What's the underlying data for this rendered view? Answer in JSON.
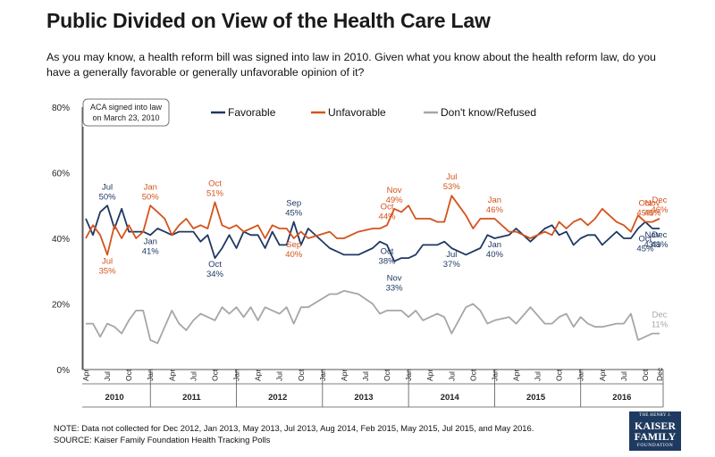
{
  "title": "Public Divided on View of the Health Care Law",
  "subtitle": "As you may know, a health reform bill was signed into law in 2010. Given what you know about the health reform law, do you have a generally favorable or generally unfavorable opinion of it?",
  "notes": {
    "note": "NOTE: Data not collected for Dec 2012, Jan 2013, May 2013, Jul 2013, Aug 2014, Feb 2015, May 2015, Jul 2015, and May 2016.",
    "source": "SOURCE: Kaiser Family Foundation Health Tracking Polls"
  },
  "logo": {
    "line1": "THE HENRY J.",
    "line2": "KAISER",
    "line3": "FAMILY",
    "line4": "FOUNDATION"
  },
  "colors": {
    "favorable": "#1f3864",
    "unfavorable": "#d4531b",
    "dontknow": "#a6a6a6",
    "axis": "#555555"
  },
  "chart_data": {
    "type": "line",
    "ylim": [
      0,
      80
    ],
    "yticks": [
      0,
      20,
      40,
      60,
      80
    ],
    "ytick_format": "percent",
    "grid": false,
    "legend_placement": "top",
    "x_month_range": [
      "2010-04",
      "2016-12"
    ],
    "month_tick_labels": [
      "Apr",
      "Jul",
      "Oct",
      "Jan"
    ],
    "year_labels": [
      "2010",
      "2011",
      "2012",
      "2013",
      "2014",
      "2015",
      "2016"
    ],
    "annotation_box": {
      "line1": "ACA signed into law",
      "line2": "on March 23, 2010"
    },
    "series": [
      {
        "name": "Favorable",
        "key": "favorable",
        "points": [
          [
            "2010-04",
            46
          ],
          [
            "2010-05",
            41
          ],
          [
            "2010-06",
            48
          ],
          [
            "2010-07",
            50
          ],
          [
            "2010-08",
            43
          ],
          [
            "2010-09",
            49
          ],
          [
            "2010-10",
            42
          ],
          [
            "2010-11",
            42
          ],
          [
            "2010-12",
            42
          ],
          [
            "2011-01",
            41
          ],
          [
            "2011-02",
            43
          ],
          [
            "2011-03",
            42
          ],
          [
            "2011-04",
            41
          ],
          [
            "2011-05",
            42
          ],
          [
            "2011-06",
            42
          ],
          [
            "2011-07",
            42
          ],
          [
            "2011-08",
            39
          ],
          [
            "2011-09",
            41
          ],
          [
            "2011-10",
            34
          ],
          [
            "2011-11",
            37
          ],
          [
            "2011-12",
            41
          ],
          [
            "2012-01",
            37
          ],
          [
            "2012-02",
            42
          ],
          [
            "2012-03",
            41
          ],
          [
            "2012-04",
            41
          ],
          [
            "2012-05",
            37
          ],
          [
            "2012-06",
            42
          ],
          [
            "2012-07",
            38
          ],
          [
            "2012-08",
            38
          ],
          [
            "2012-09",
            45
          ],
          [
            "2012-10",
            38
          ],
          [
            "2012-11",
            43
          ],
          [
            "2013-02",
            37
          ],
          [
            "2013-03",
            36
          ],
          [
            "2013-04",
            35
          ],
          [
            "2013-06",
            35
          ],
          [
            "2013-08",
            37
          ],
          [
            "2013-09",
            39
          ],
          [
            "2013-10",
            38
          ],
          [
            "2013-11",
            33
          ],
          [
            "2013-12",
            34
          ],
          [
            "2014-01",
            34
          ],
          [
            "2014-02",
            35
          ],
          [
            "2014-03",
            38
          ],
          [
            "2014-04",
            38
          ],
          [
            "2014-05",
            38
          ],
          [
            "2014-06",
            39
          ],
          [
            "2014-07",
            37
          ],
          [
            "2014-09",
            35
          ],
          [
            "2014-10",
            36
          ],
          [
            "2014-11",
            37
          ],
          [
            "2014-12",
            41
          ],
          [
            "2015-01",
            40
          ],
          [
            "2015-03",
            41
          ],
          [
            "2015-04",
            43
          ],
          [
            "2015-06",
            39
          ],
          [
            "2015-08",
            43
          ],
          [
            "2015-09",
            44
          ],
          [
            "2015-10",
            41
          ],
          [
            "2015-11",
            42
          ],
          [
            "2015-12",
            38
          ],
          [
            "2016-01",
            40
          ],
          [
            "2016-02",
            41
          ],
          [
            "2016-03",
            41
          ],
          [
            "2016-04",
            38
          ],
          [
            "2016-06",
            42
          ],
          [
            "2016-07",
            40
          ],
          [
            "2016-08",
            40
          ],
          [
            "2016-09",
            43
          ],
          [
            "2016-10",
            45
          ],
          [
            "2016-11",
            43
          ],
          [
            "2016-12",
            43
          ]
        ]
      },
      {
        "name": "Unfavorable",
        "key": "unfavorable",
        "points": [
          [
            "2010-04",
            40
          ],
          [
            "2010-05",
            44
          ],
          [
            "2010-06",
            41
          ],
          [
            "2010-07",
            35
          ],
          [
            "2010-08",
            44
          ],
          [
            "2010-09",
            40
          ],
          [
            "2010-10",
            44
          ],
          [
            "2010-11",
            40
          ],
          [
            "2010-12",
            42
          ],
          [
            "2011-01",
            50
          ],
          [
            "2011-02",
            48
          ],
          [
            "2011-03",
            46
          ],
          [
            "2011-04",
            41
          ],
          [
            "2011-05",
            44
          ],
          [
            "2011-06",
            46
          ],
          [
            "2011-07",
            43
          ],
          [
            "2011-08",
            44
          ],
          [
            "2011-09",
            43
          ],
          [
            "2011-10",
            51
          ],
          [
            "2011-11",
            44
          ],
          [
            "2011-12",
            43
          ],
          [
            "2012-01",
            44
          ],
          [
            "2012-02",
            42
          ],
          [
            "2012-03",
            43
          ],
          [
            "2012-04",
            44
          ],
          [
            "2012-05",
            40
          ],
          [
            "2012-06",
            44
          ],
          [
            "2012-07",
            43
          ],
          [
            "2012-08",
            43
          ],
          [
            "2012-09",
            40
          ],
          [
            "2012-10",
            42
          ],
          [
            "2012-11",
            40
          ],
          [
            "2013-02",
            42
          ],
          [
            "2013-03",
            40
          ],
          [
            "2013-04",
            40
          ],
          [
            "2013-06",
            42
          ],
          [
            "2013-08",
            43
          ],
          [
            "2013-09",
            43
          ],
          [
            "2013-10",
            44
          ],
          [
            "2013-11",
            49
          ],
          [
            "2013-12",
            48
          ],
          [
            "2014-01",
            50
          ],
          [
            "2014-02",
            46
          ],
          [
            "2014-03",
            46
          ],
          [
            "2014-04",
            46
          ],
          [
            "2014-05",
            45
          ],
          [
            "2014-06",
            45
          ],
          [
            "2014-07",
            53
          ],
          [
            "2014-09",
            47
          ],
          [
            "2014-10",
            43
          ],
          [
            "2014-11",
            46
          ],
          [
            "2014-12",
            46
          ],
          [
            "2015-01",
            46
          ],
          [
            "2015-03",
            42
          ],
          [
            "2015-04",
            42
          ],
          [
            "2015-06",
            40
          ],
          [
            "2015-08",
            42
          ],
          [
            "2015-09",
            41
          ],
          [
            "2015-10",
            45
          ],
          [
            "2015-11",
            43
          ],
          [
            "2015-12",
            45
          ],
          [
            "2016-01",
            46
          ],
          [
            "2016-02",
            44
          ],
          [
            "2016-03",
            46
          ],
          [
            "2016-04",
            49
          ],
          [
            "2016-06",
            45
          ],
          [
            "2016-07",
            44
          ],
          [
            "2016-08",
            42
          ],
          [
            "2016-09",
            47
          ],
          [
            "2016-10",
            45
          ],
          [
            "2016-11",
            45
          ],
          [
            "2016-12",
            46
          ]
        ]
      },
      {
        "name": "Don't know/Refused",
        "key": "dontknow",
        "points": [
          [
            "2010-04",
            14
          ],
          [
            "2010-05",
            14
          ],
          [
            "2010-06",
            10
          ],
          [
            "2010-07",
            14
          ],
          [
            "2010-08",
            13
          ],
          [
            "2010-09",
            11
          ],
          [
            "2010-10",
            15
          ],
          [
            "2010-11",
            18
          ],
          [
            "2010-12",
            18
          ],
          [
            "2011-01",
            9
          ],
          [
            "2011-02",
            8
          ],
          [
            "2011-03",
            13
          ],
          [
            "2011-04",
            18
          ],
          [
            "2011-05",
            14
          ],
          [
            "2011-06",
            12
          ],
          [
            "2011-07",
            15
          ],
          [
            "2011-08",
            17
          ],
          [
            "2011-09",
            16
          ],
          [
            "2011-10",
            15
          ],
          [
            "2011-11",
            19
          ],
          [
            "2011-12",
            17
          ],
          [
            "2012-01",
            19
          ],
          [
            "2012-02",
            16
          ],
          [
            "2012-03",
            19
          ],
          [
            "2012-04",
            15
          ],
          [
            "2012-05",
            19
          ],
          [
            "2012-06",
            18
          ],
          [
            "2012-07",
            17
          ],
          [
            "2012-08",
            19
          ],
          [
            "2012-09",
            14
          ],
          [
            "2012-10",
            19
          ],
          [
            "2012-11",
            19
          ],
          [
            "2013-02",
            23
          ],
          [
            "2013-03",
            23
          ],
          [
            "2013-04",
            24
          ],
          [
            "2013-06",
            23
          ],
          [
            "2013-08",
            20
          ],
          [
            "2013-09",
            17
          ],
          [
            "2013-10",
            18
          ],
          [
            "2013-11",
            18
          ],
          [
            "2013-12",
            18
          ],
          [
            "2014-01",
            16
          ],
          [
            "2014-02",
            18
          ],
          [
            "2014-03",
            15
          ],
          [
            "2014-04",
            16
          ],
          [
            "2014-05",
            17
          ],
          [
            "2014-06",
            16
          ],
          [
            "2014-07",
            11
          ],
          [
            "2014-09",
            19
          ],
          [
            "2014-10",
            20
          ],
          [
            "2014-11",
            18
          ],
          [
            "2014-12",
            14
          ],
          [
            "2015-01",
            15
          ],
          [
            "2015-03",
            16
          ],
          [
            "2015-04",
            14
          ],
          [
            "2015-06",
            19
          ],
          [
            "2015-08",
            14
          ],
          [
            "2015-09",
            14
          ],
          [
            "2015-10",
            16
          ],
          [
            "2015-11",
            17
          ],
          [
            "2015-12",
            13
          ],
          [
            "2016-01",
            16
          ],
          [
            "2016-02",
            14
          ],
          [
            "2016-03",
            13
          ],
          [
            "2016-04",
            13
          ],
          [
            "2016-06",
            14
          ],
          [
            "2016-07",
            14
          ],
          [
            "2016-08",
            17
          ],
          [
            "2016-09",
            9
          ],
          [
            "2016-10",
            10
          ],
          [
            "2016-11",
            11
          ],
          [
            "2016-12",
            11
          ]
        ]
      }
    ],
    "data_labels": [
      {
        "series": "favorable",
        "month": "2010-07",
        "name": "Jul",
        "value": "50%",
        "pos": "above"
      },
      {
        "series": "favorable",
        "month": "2011-01",
        "name": "Jan",
        "value": "41%",
        "pos": "below"
      },
      {
        "series": "favorable",
        "month": "2011-10",
        "name": "Oct",
        "value": "34%",
        "pos": "below"
      },
      {
        "series": "favorable",
        "month": "2012-09",
        "name": "Sep",
        "value": "45%",
        "pos": "above"
      },
      {
        "series": "favorable",
        "month": "2013-10",
        "name": "Oct",
        "value": "38%",
        "pos": "below"
      },
      {
        "series": "favorable",
        "month": "2013-11",
        "name": "Nov",
        "value": "33%",
        "pos": "below2"
      },
      {
        "series": "favorable",
        "month": "2014-07",
        "name": "Jul",
        "value": "37%",
        "pos": "below"
      },
      {
        "series": "favorable",
        "month": "2015-01",
        "name": "Jan",
        "value": "40%",
        "pos": "below"
      },
      {
        "series": "favorable",
        "month": "2016-10",
        "name": "Oct",
        "value": "45%",
        "pos": "below2"
      },
      {
        "series": "favorable",
        "month": "2016-11",
        "name": "Nov",
        "value": "43%",
        "pos": "below"
      },
      {
        "series": "favorable",
        "month": "2016-12",
        "name": "Dec",
        "value": "43%",
        "pos": "below"
      },
      {
        "series": "unfavorable",
        "month": "2010-07",
        "name": "Jul",
        "value": "35%",
        "pos": "below"
      },
      {
        "series": "unfavorable",
        "month": "2011-01",
        "name": "Jan",
        "value": "50%",
        "pos": "above"
      },
      {
        "series": "unfavorable",
        "month": "2011-10",
        "name": "Oct",
        "value": "51%",
        "pos": "above"
      },
      {
        "series": "unfavorable",
        "month": "2012-09",
        "name": "Sep",
        "value": "40%",
        "pos": "below"
      },
      {
        "series": "unfavorable",
        "month": "2013-10",
        "name": "Oct",
        "value": "44%",
        "pos": "above"
      },
      {
        "series": "unfavorable",
        "month": "2013-11",
        "name": "Nov",
        "value": "49%",
        "pos": "above"
      },
      {
        "series": "unfavorable",
        "month": "2014-07",
        "name": "Jul",
        "value": "53%",
        "pos": "above"
      },
      {
        "series": "unfavorable",
        "month": "2015-01",
        "name": "Jan",
        "value": "46%",
        "pos": "above"
      },
      {
        "series": "unfavorable",
        "month": "2016-10",
        "name": "Oct",
        "value": "45%",
        "pos": "above"
      },
      {
        "series": "unfavorable",
        "month": "2016-11",
        "name": "Nov",
        "value": "45%",
        "pos": "above"
      },
      {
        "series": "unfavorable",
        "month": "2016-12",
        "name": "Dec",
        "value": "46%",
        "pos": "above"
      },
      {
        "series": "dontknow",
        "month": "2016-12",
        "name": "Dec",
        "value": "11%",
        "pos": "above"
      }
    ]
  }
}
